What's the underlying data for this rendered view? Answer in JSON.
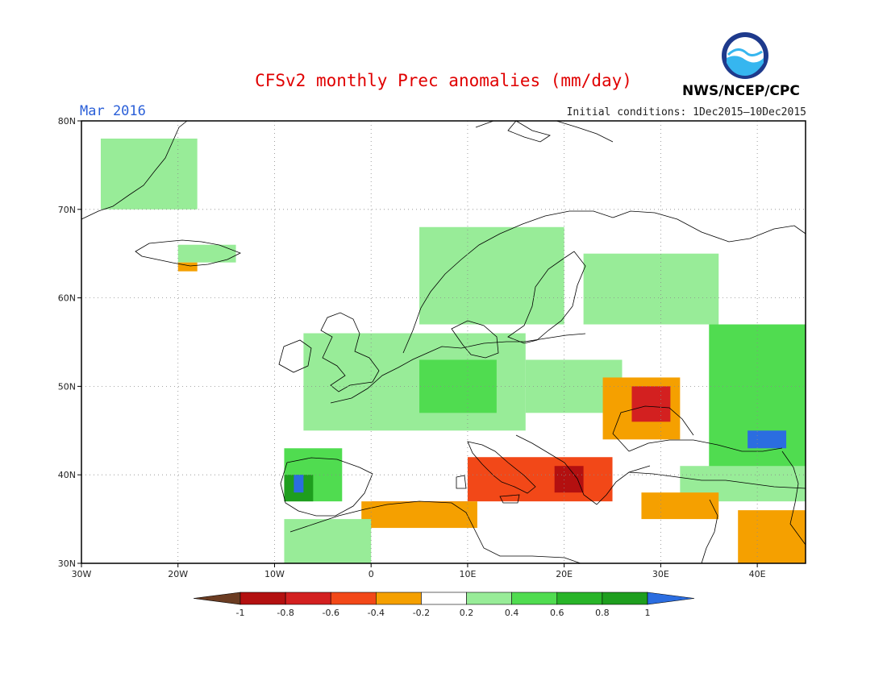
{
  "title": "CFSv2 monthly Prec anomalies (mm/day)",
  "period": "Mar 2016",
  "initial_conditions": "Initial conditions: 1Dec2015—10Dec2015",
  "agency": "NWS/NCEP/CPC",
  "logo_text": "NOAA",
  "map": {
    "lon_range": [
      -30,
      45
    ],
    "lat_range": [
      30,
      80
    ],
    "lat_labels": [
      "30N",
      "40N",
      "50N",
      "60N",
      "70N",
      "80N"
    ],
    "lon_labels": [
      "30W",
      "20W",
      "10W",
      "0",
      "10E",
      "20E",
      "30E",
      "40E"
    ],
    "grid": "dotted",
    "units": "mm/day"
  },
  "colorbar": {
    "labels": [
      "-1",
      "-0.8",
      "-0.6",
      "-0.4",
      "-0.2",
      "0.2",
      "0.4",
      "0.6",
      "0.8",
      "1"
    ],
    "colors": [
      "#6b3c22",
      "#b31010",
      "#d32020",
      "#f24818",
      "#f5a000",
      "#ffffff",
      "#98ec98",
      "#50dc50",
      "#28b428",
      "#1e9e1e",
      "#2b6de0"
    ]
  },
  "anomaly_regions": [
    {
      "class": "pos_0.2-0.4",
      "color": "#98ec98",
      "region": "Greenland coast",
      "lon": [
        -28,
        -18
      ],
      "lat": [
        70,
        78
      ]
    },
    {
      "class": "pos_0.2-0.4",
      "color": "#98ec98",
      "region": "Iceland",
      "lon": [
        -20,
        -14
      ],
      "lat": [
        64,
        66
      ]
    },
    {
      "class": "neg_0.2-0.4",
      "color": "#f5a000",
      "region": "S Iceland",
      "lon": [
        -20,
        -18
      ],
      "lat": [
        63,
        64
      ]
    },
    {
      "class": "pos_0.2-0.4",
      "color": "#98ec98",
      "region": "Norway/Sweden",
      "lon": [
        5,
        20
      ],
      "lat": [
        57,
        68
      ]
    },
    {
      "class": "pos_0.2-0.4",
      "color": "#98ec98",
      "region": "Finland/NW Russia",
      "lon": [
        22,
        36
      ],
      "lat": [
        57,
        65
      ]
    },
    {
      "class": "pos_0.2-0.4",
      "color": "#98ec98",
      "region": "British Isles/W Europe",
      "lon": [
        -7,
        16
      ],
      "lat": [
        45,
        56
      ]
    },
    {
      "class": "pos_0.4-0.6",
      "color": "#50dc50",
      "region": "Germany/Benelux",
      "lon": [
        5,
        13
      ],
      "lat": [
        47,
        53
      ]
    },
    {
      "class": "pos_0.2-0.4",
      "color": "#98ec98",
      "region": "Poland/Ukraine",
      "lon": [
        16,
        26
      ],
      "lat": [
        47,
        53
      ]
    },
    {
      "class": "pos_0.4-0.6",
      "color": "#50dc50",
      "region": "Iberia west",
      "lon": [
        -9,
        -3
      ],
      "lat": [
        37,
        43
      ]
    },
    {
      "class": "pos_0.8-1",
      "color": "#1e9e1e",
      "region": "Portugal",
      "lon": [
        -9,
        -6
      ],
      "lat": [
        37,
        40
      ]
    },
    {
      "class": "pos_>1",
      "color": "#2b6de0",
      "region": "Portugal core",
      "lon": [
        -8,
        -7
      ],
      "lat": [
        38,
        40
      ]
    },
    {
      "class": "pos_0.4-0.6",
      "color": "#50dc50",
      "region": "Russia/Caucasus",
      "lon": [
        35,
        45
      ],
      "lat": [
        40,
        57
      ]
    },
    {
      "class": "pos_>1",
      "color": "#2b6de0",
      "region": "Caucasus",
      "lon": [
        39,
        43
      ],
      "lat": [
        43,
        45
      ]
    },
    {
      "class": "pos_0.2-0.4",
      "color": "#98ec98",
      "region": "Turkey",
      "lon": [
        32,
        45
      ],
      "lat": [
        37,
        41
      ]
    },
    {
      "class": "neg_0.2-0.4",
      "color": "#f5a000",
      "region": "Romania/Moldova",
      "lon": [
        24,
        32
      ],
      "lat": [
        44,
        51
      ]
    },
    {
      "class": "neg_0.6-0.8",
      "color": "#d32020",
      "region": "Moldova core",
      "lon": [
        27,
        31
      ],
      "lat": [
        46,
        50
      ]
    },
    {
      "class": "neg_0.4-0.6",
      "color": "#f24818",
      "region": "Greece/S Italy",
      "lon": [
        10,
        25
      ],
      "lat": [
        37,
        42
      ]
    },
    {
      "class": "neg_0.8-1",
      "color": "#b31010",
      "region": "Greece core",
      "lon": [
        19,
        22
      ],
      "lat": [
        38,
        41
      ]
    },
    {
      "class": "neg_0.6-0.8",
      "color": "#d32020",
      "region": "N Africa coast",
      "lon": [
        0,
        10
      ],
      "lat": [
        35,
        37
      ]
    },
    {
      "class": "neg_0.2-0.4",
      "color": "#f5a000",
      "region": "Algeria/Tunisia",
      "lon": [
        -1,
        11
      ],
      "lat": [
        34,
        37
      ]
    },
    {
      "class": "neg_0.2-0.4",
      "color": "#f5a000",
      "region": "E Mediterranean",
      "lon": [
        28,
        36
      ],
      "lat": [
        35,
        38
      ]
    },
    {
      "class": "neg_0.2-0.4",
      "color": "#f5a000",
      "region": "Levant/Iraq",
      "lon": [
        38,
        45
      ],
      "lat": [
        30,
        36
      ]
    },
    {
      "class": "pos_0.2-0.4",
      "color": "#98ec98",
      "region": "Morocco",
      "lon": [
        -9,
        0
      ],
      "lat": [
        30,
        35
      ]
    }
  ]
}
